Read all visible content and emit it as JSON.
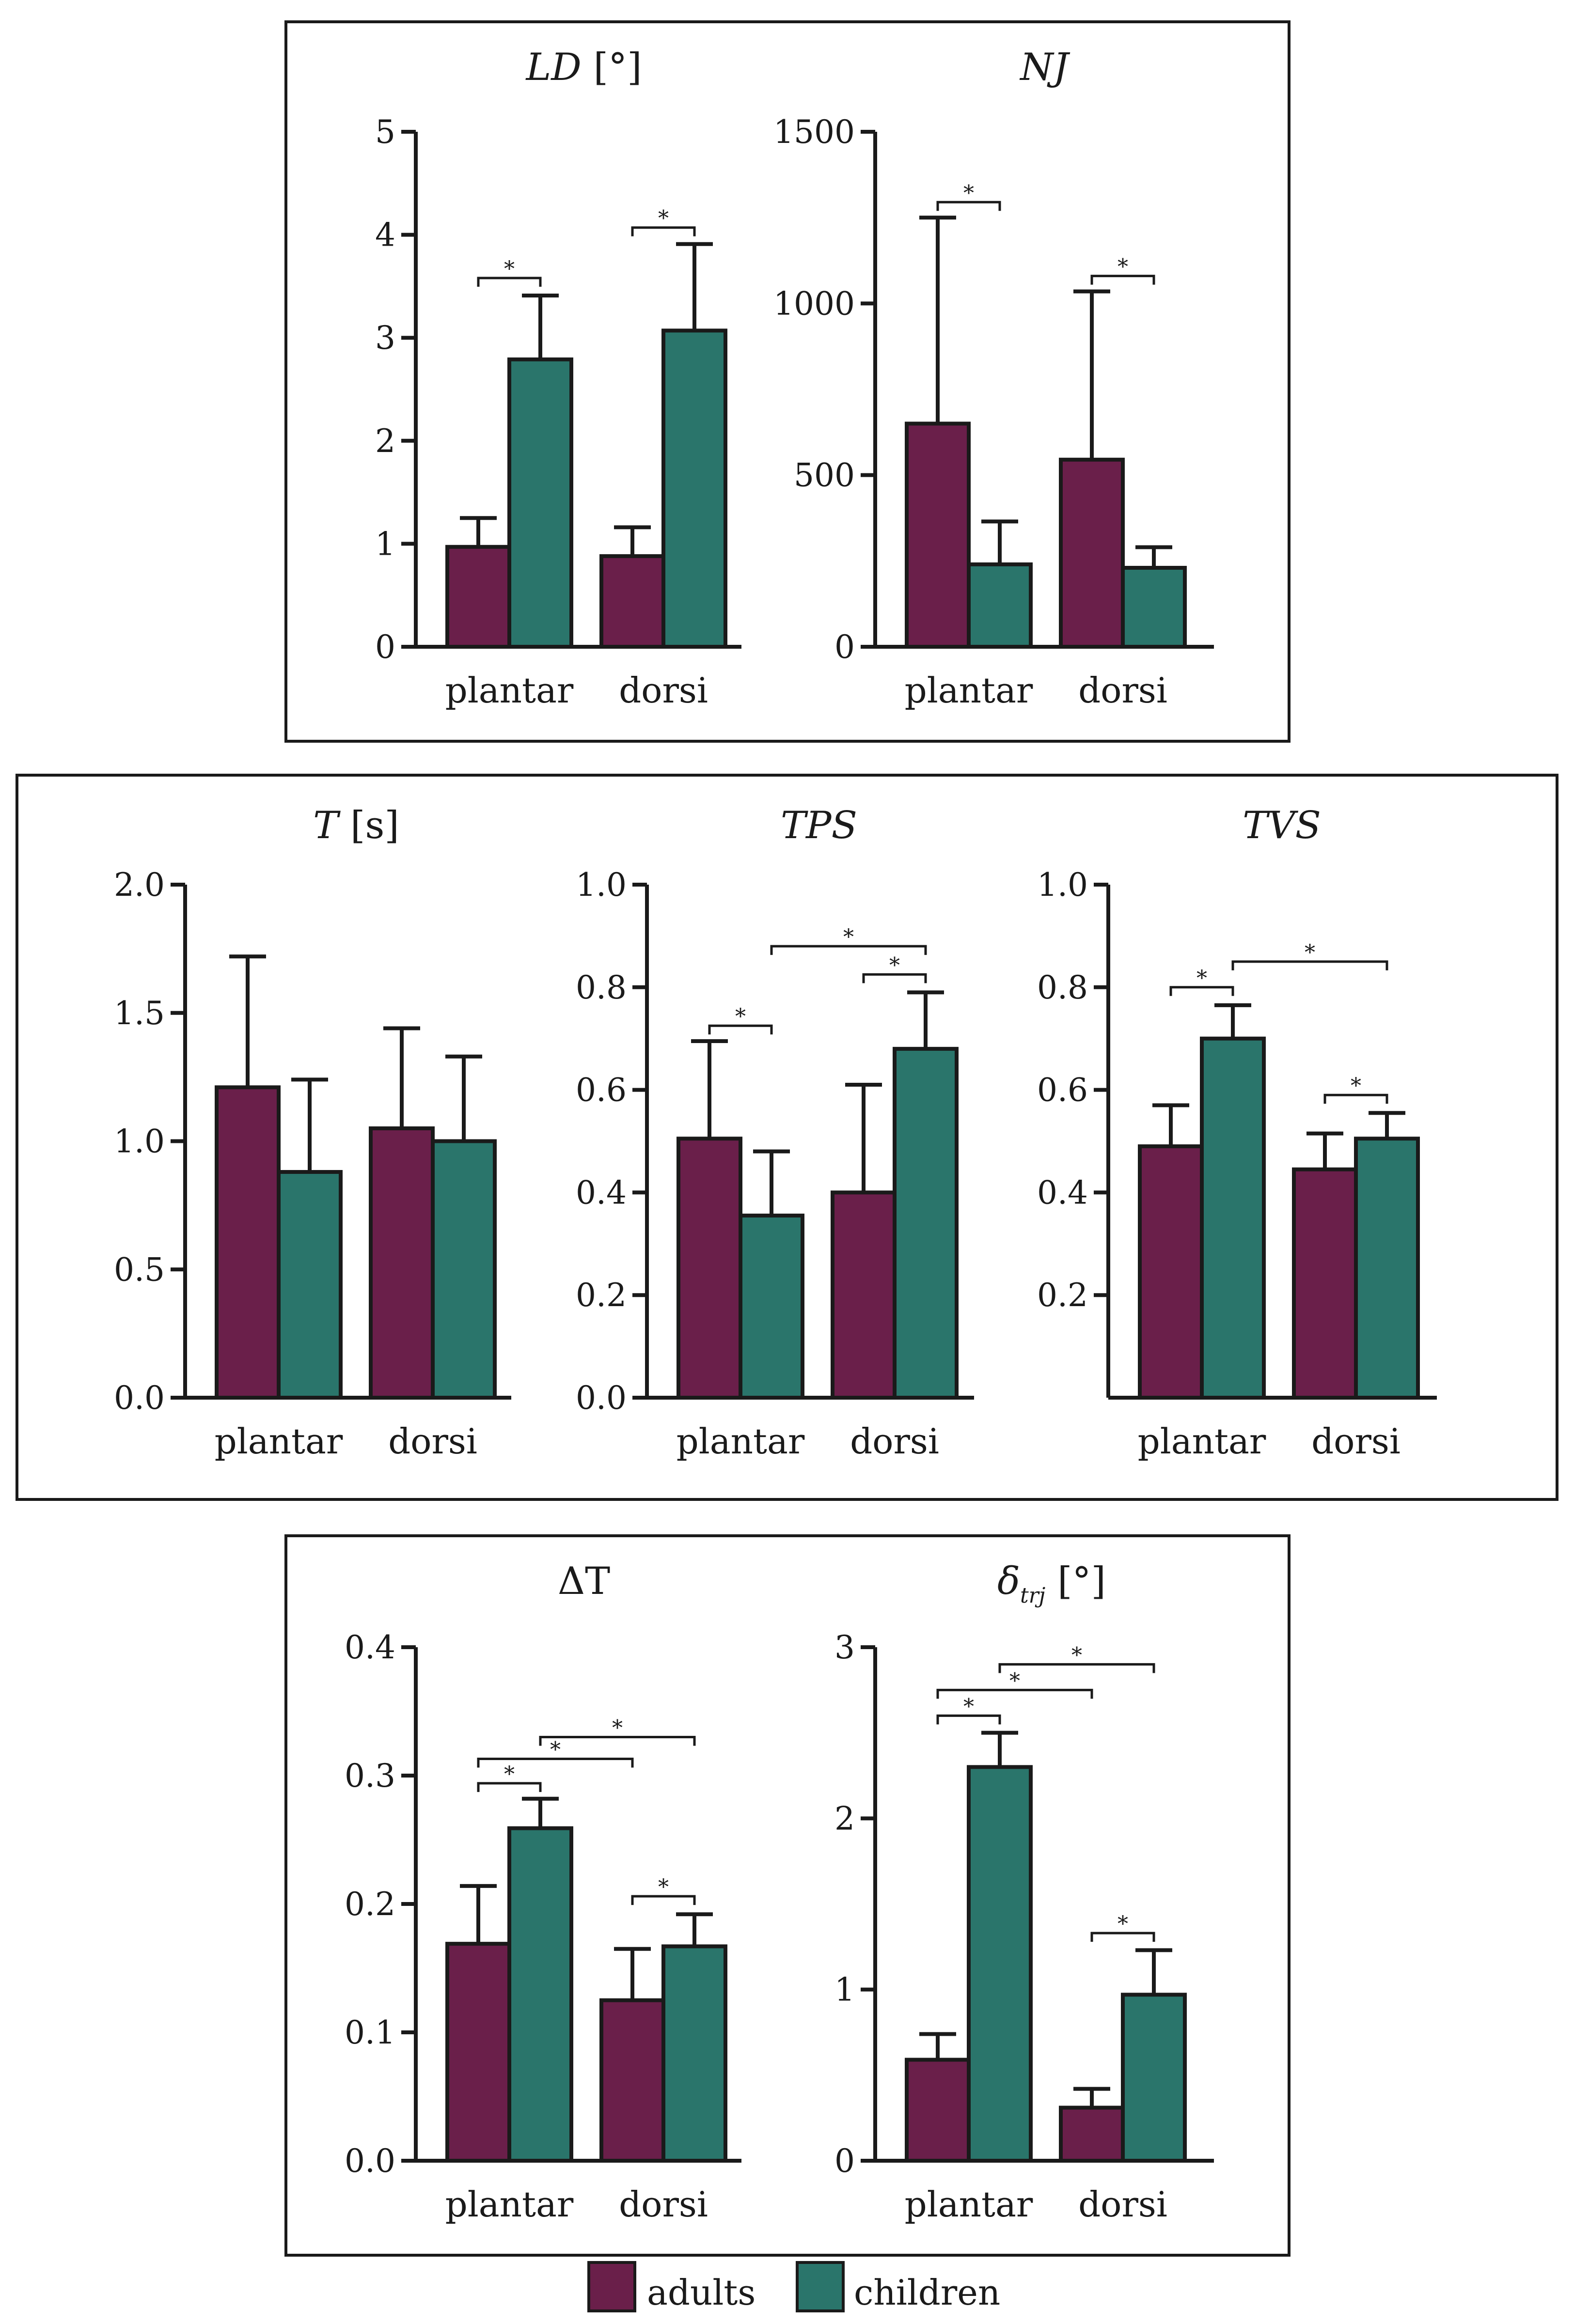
{
  "legend": {
    "items": [
      {
        "label": "adults",
        "color": "#6a1f4a"
      },
      {
        "label": "children",
        "color": "#2a756b"
      }
    ]
  },
  "colors": {
    "adults": "#6a1f4a",
    "children": "#2a756b",
    "axis": "#1a1a1a"
  },
  "chart_data": [
    {
      "id": "ld",
      "type": "bar",
      "title": "LD",
      "title_unit": " [°]",
      "categories": [
        "plantar",
        "dorsi"
      ],
      "series": [
        {
          "name": "adults",
          "values": [
            0.97,
            0.88
          ],
          "errors": [
            0.28,
            0.28
          ]
        },
        {
          "name": "children",
          "values": [
            2.79,
            3.07
          ],
          "errors": [
            0.62,
            0.84
          ]
        }
      ],
      "ylim": [
        0,
        5
      ],
      "yticks": [
        0,
        1,
        2,
        3,
        4,
        5
      ],
      "ytick_labels": [
        "0",
        "1",
        "2",
        "3",
        "4",
        "5"
      ],
      "significance": [
        {
          "from": [
            0,
            0
          ],
          "to": [
            0,
            1
          ],
          "y": 3.58,
          "label": "*"
        },
        {
          "from": [
            1,
            0
          ],
          "to": [
            1,
            1
          ],
          "y": 4.07,
          "label": "*"
        }
      ]
    },
    {
      "id": "nj",
      "type": "bar",
      "title": "NJ",
      "title_unit": "",
      "categories": [
        "plantar",
        "dorsi"
      ],
      "series": [
        {
          "name": "adults",
          "values": [
            650,
            545
          ],
          "errors": [
            600,
            490
          ]
        },
        {
          "name": "children",
          "values": [
            240,
            230
          ],
          "errors": [
            125,
            60
          ]
        }
      ],
      "ylim": [
        0,
        1500
      ],
      "yticks": [
        0,
        500,
        1000,
        1500
      ],
      "ytick_labels": [
        "0",
        "500",
        "1000",
        "1500"
      ],
      "significance": [
        {
          "from": [
            0,
            0
          ],
          "to": [
            0,
            1
          ],
          "y": 1295,
          "label": "*"
        },
        {
          "from": [
            1,
            0
          ],
          "to": [
            1,
            1
          ],
          "y": 1080,
          "label": "*"
        }
      ]
    },
    {
      "id": "t",
      "type": "bar",
      "title": "T",
      "title_unit": " [s]",
      "categories": [
        "plantar",
        "dorsi"
      ],
      "series": [
        {
          "name": "adults",
          "values": [
            1.21,
            1.05
          ],
          "errors": [
            0.51,
            0.39
          ]
        },
        {
          "name": "children",
          "values": [
            0.88,
            1.0
          ],
          "errors": [
            0.36,
            0.33
          ]
        }
      ],
      "ylim": [
        0,
        2
      ],
      "yticks": [
        0,
        0.5,
        1,
        1.5,
        2
      ],
      "ytick_labels": [
        "0.0",
        "0.5",
        "1.0",
        "1.5",
        "2.0"
      ],
      "significance": []
    },
    {
      "id": "tps",
      "type": "bar",
      "title": "TPS",
      "title_unit": "",
      "categories": [
        "plantar",
        "dorsi"
      ],
      "series": [
        {
          "name": "adults",
          "values": [
            0.505,
            0.4
          ],
          "errors": [
            0.19,
            0.21
          ]
        },
        {
          "name": "children",
          "values": [
            0.355,
            0.68
          ],
          "errors": [
            0.125,
            0.11
          ]
        }
      ],
      "ylim": [
        0,
        1
      ],
      "yticks": [
        0,
        0.2,
        0.4,
        0.6,
        0.8,
        1
      ],
      "ytick_labels": [
        "0.0",
        "0.2",
        "0.4",
        "0.6",
        "0.8",
        "1.0"
      ],
      "significance": [
        {
          "from": [
            0,
            0
          ],
          "to": [
            0,
            1
          ],
          "y": 0.725,
          "label": "*"
        },
        {
          "from": [
            1,
            0
          ],
          "to": [
            1,
            1
          ],
          "y": 0.825,
          "label": "*"
        },
        {
          "from": [
            0,
            1
          ],
          "to": [
            1,
            1
          ],
          "y": 0.88,
          "label": "*"
        }
      ]
    },
    {
      "id": "tvs",
      "type": "bar",
      "title": "TVS",
      "title_unit": "",
      "categories": [
        "plantar",
        "dorsi"
      ],
      "series": [
        {
          "name": "adults",
          "values": [
            0.49,
            0.445
          ],
          "errors": [
            0.08,
            0.07
          ]
        },
        {
          "name": "children",
          "values": [
            0.7,
            0.505
          ],
          "errors": [
            0.065,
            0.05
          ]
        }
      ],
      "ylim": [
        0,
        1
      ],
      "yticks": [
        0.2,
        0.4,
        0.6,
        0.8,
        1
      ],
      "ytick_labels": [
        "0.2",
        "0.4",
        "0.6",
        "0.8",
        "1.0"
      ],
      "significance": [
        {
          "from": [
            0,
            0
          ],
          "to": [
            0,
            1
          ],
          "y": 0.8,
          "label": "*"
        },
        {
          "from": [
            0,
            1
          ],
          "to": [
            1,
            1
          ],
          "y": 0.85,
          "label": "*"
        },
        {
          "from": [
            1,
            0
          ],
          "to": [
            1,
            1
          ],
          "y": 0.59,
          "label": "*"
        }
      ]
    },
    {
      "id": "dt",
      "type": "bar",
      "title": "ΔT",
      "title_unit": "",
      "categories": [
        "plantar",
        "dorsi"
      ],
      "series": [
        {
          "name": "adults",
          "values": [
            0.169,
            0.125
          ],
          "errors": [
            0.045,
            0.04
          ]
        },
        {
          "name": "children",
          "values": [
            0.259,
            0.167
          ],
          "errors": [
            0.023,
            0.025
          ]
        }
      ],
      "ylim": [
        0,
        0.4
      ],
      "yticks": [
        0,
        0.1,
        0.2,
        0.3,
        0.4
      ],
      "ytick_labels": [
        "0.0",
        "0.1",
        "0.2",
        "0.3",
        "0.4"
      ],
      "significance": [
        {
          "from": [
            0,
            0
          ],
          "to": [
            0,
            1
          ],
          "y": 0.294,
          "label": "*"
        },
        {
          "from": [
            0,
            0
          ],
          "to": [
            1,
            0
          ],
          "y": 0.313,
          "label": "*"
        },
        {
          "from": [
            0,
            1
          ],
          "to": [
            1,
            1
          ],
          "y": 0.33,
          "label": "*"
        },
        {
          "from": [
            1,
            0
          ],
          "to": [
            1,
            1
          ],
          "y": 0.206,
          "label": "*"
        }
      ]
    },
    {
      "id": "dtrj",
      "type": "bar",
      "title": "δ",
      "title_sub": "trj",
      "title_unit": " [°]",
      "categories": [
        "plantar",
        "dorsi"
      ],
      "series": [
        {
          "name": "adults",
          "values": [
            0.59,
            0.31
          ],
          "errors": [
            0.15,
            0.11
          ]
        },
        {
          "name": "children",
          "values": [
            2.3,
            0.97
          ],
          "errors": [
            0.2,
            0.26
          ]
        }
      ],
      "ylim": [
        0,
        3
      ],
      "yticks": [
        0,
        1,
        2,
        3
      ],
      "ytick_labels": [
        "0",
        "1",
        "2",
        "3"
      ],
      "significance": [
        {
          "from": [
            0,
            0
          ],
          "to": [
            0,
            1
          ],
          "y": 2.6,
          "label": "*"
        },
        {
          "from": [
            0,
            0
          ],
          "to": [
            1,
            0
          ],
          "y": 2.75,
          "label": "*"
        },
        {
          "from": [
            0,
            1
          ],
          "to": [
            1,
            1
          ],
          "y": 2.9,
          "label": "*"
        },
        {
          "from": [
            1,
            0
          ],
          "to": [
            1,
            1
          ],
          "y": 1.33,
          "label": "*"
        }
      ]
    }
  ]
}
